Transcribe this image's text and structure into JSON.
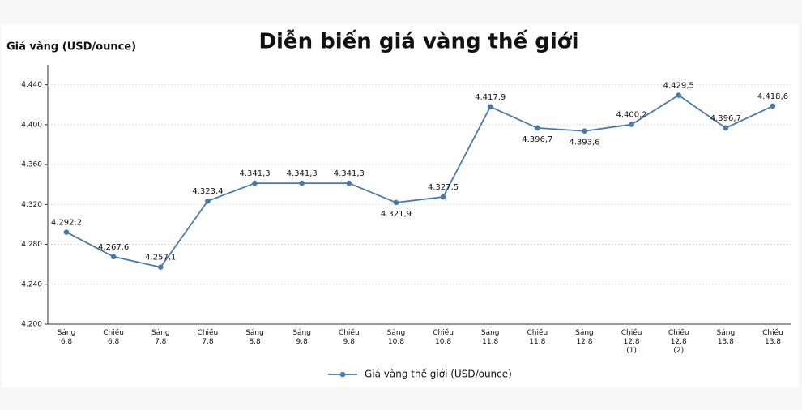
{
  "chart_data": {
    "type": "line",
    "title": "Diễn biến giá vàng thế giới",
    "y_label": "Giá vàng (USD/ounce)",
    "categories": [
      "Sáng\n6.8",
      "Chiều\n6.8",
      "Sáng\n7.8",
      "Chiều\n7.8",
      "Sáng\n8.8",
      "Sáng\n9.8",
      "Chiều\n9.8",
      "Sáng\n10.8",
      "Chiều\n10.8",
      "Sáng\n11.8",
      "Chiều\n11.8",
      "Sáng\n12.8",
      "Chiều\n12.8\n(1)",
      "Chiều\n12.8\n(2)",
      "Sáng\n13.8",
      "Chiều\n13.8"
    ],
    "series": [
      {
        "name": "Giá vàng thế giới (USD/ounce)",
        "color": "#4a7aad",
        "values": [
          4292.2,
          4267.6,
          4257.1,
          4323.4,
          4341.3,
          4341.3,
          4341.3,
          4321.9,
          4327.5,
          4417.9,
          4396.7,
          4393.6,
          4400.2,
          4429.5,
          4396.7,
          4418.6
        ],
        "value_labels": [
          "4.292,2",
          "4.267,6",
          "4.257,1",
          "4.323,4",
          "4.341,3",
          "4.341,3",
          "4.341,3",
          "4.321,9",
          "4.327,5",
          "4.417,9",
          "4.396,7",
          "4.393,6",
          "4.400,2",
          "4.429,5",
          "4.396,7",
          "4.418,6"
        ]
      }
    ],
    "ylim": [
      4200,
      4460
    ],
    "yticks": [
      {
        "value": 4200,
        "label": "4.200"
      },
      {
        "value": 4240,
        "label": "4.240"
      },
      {
        "value": 4280,
        "label": "4.280"
      },
      {
        "value": 4320,
        "label": "4.320"
      },
      {
        "value": 4360,
        "label": "4.360"
      },
      {
        "value": 4400,
        "label": "4.400"
      },
      {
        "value": 4440,
        "label": "4.440"
      }
    ],
    "grid": true
  }
}
